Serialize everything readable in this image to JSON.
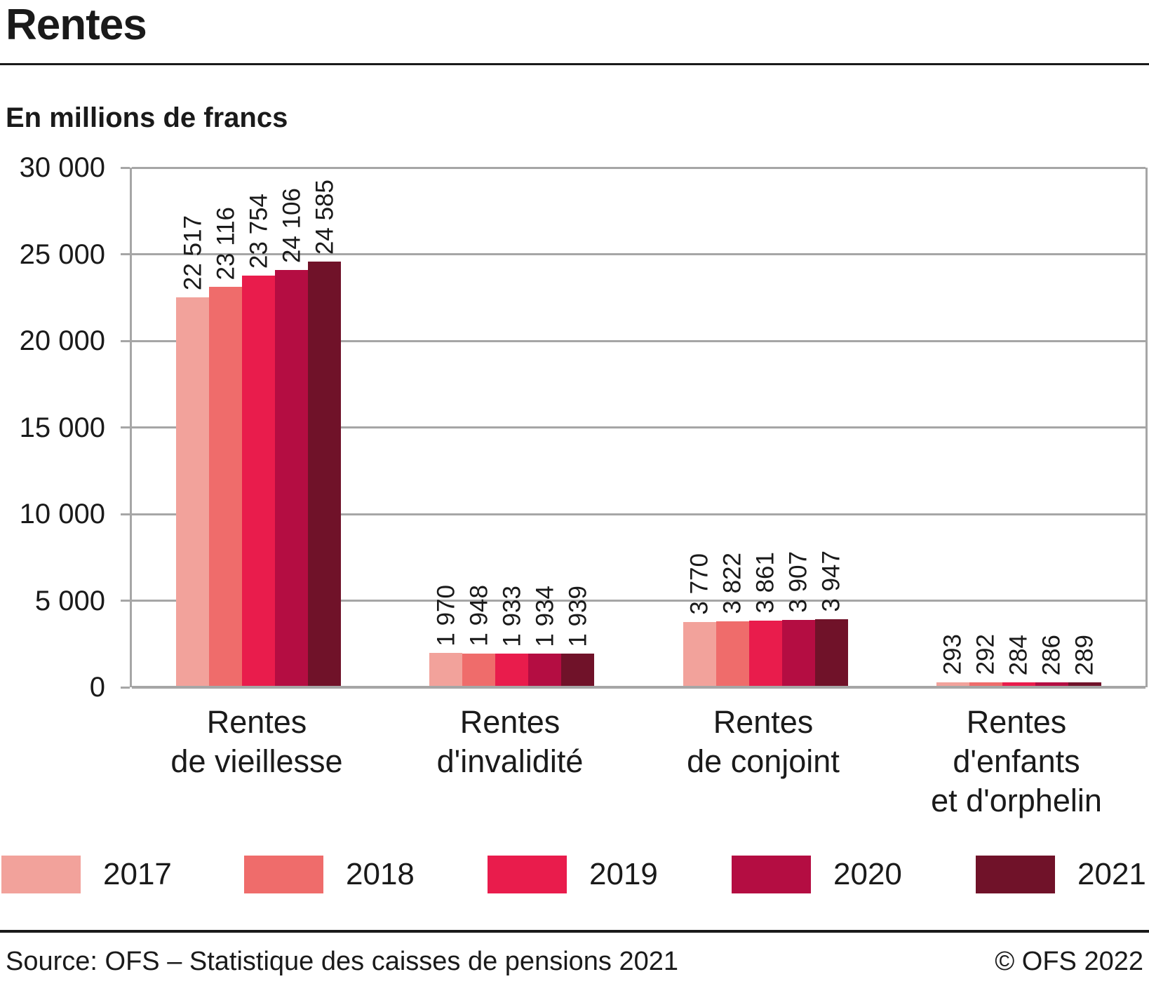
{
  "header": {
    "title": "Rentes",
    "unit_label": "En millions de francs"
  },
  "chart_data": {
    "type": "bar",
    "title": "Rentes",
    "subtitle": "En millions de francs",
    "categories": [
      [
        "Rentes",
        "de vieillesse"
      ],
      [
        "Rentes",
        "d'invalidité"
      ],
      [
        "Rentes",
        "de conjoint"
      ],
      [
        "Rentes",
        "d'enfants",
        "et d'orphelin"
      ]
    ],
    "series": [
      {
        "name": "2017",
        "color": "#F2A29B",
        "values": [
          22517,
          1970,
          3770,
          293
        ],
        "labels": [
          "22 517",
          "1 970",
          "3 770",
          "293"
        ]
      },
      {
        "name": "2018",
        "color": "#EF6C6B",
        "values": [
          23116,
          1948,
          3822,
          292
        ],
        "labels": [
          "23 116",
          "1 948",
          "3 822",
          "292"
        ]
      },
      {
        "name": "2019",
        "color": "#E91C4C",
        "values": [
          23754,
          1933,
          3861,
          284
        ],
        "labels": [
          "23 754",
          "1 933",
          "3 861",
          "284"
        ]
      },
      {
        "name": "2020",
        "color": "#B40D42",
        "values": [
          24106,
          1934,
          3907,
          286
        ],
        "labels": [
          "24 106",
          "1 934",
          "3 907",
          "286"
        ]
      },
      {
        "name": "2021",
        "color": "#701229",
        "values": [
          24585,
          1939,
          3947,
          289
        ],
        "labels": [
          "24 585",
          "1 939",
          "3 947",
          "289"
        ]
      }
    ],
    "ylabel": "En millions de francs",
    "xlabel": "",
    "ylim": [
      0,
      30000
    ],
    "ytick_step": 5000,
    "ytick_labels": [
      "30 000",
      "25 000",
      "20 000",
      "15 000",
      "10 000",
      "5 000",
      "0"
    ],
    "grid": "horizontal",
    "legend_position": "bottom",
    "colors": {
      "gridline": "#a6a6a6",
      "text": "#1a1a1a"
    }
  },
  "footer": {
    "source": "Source: OFS – Statistique des caisses de pensions 2021",
    "copyright": "© OFS 2022"
  }
}
